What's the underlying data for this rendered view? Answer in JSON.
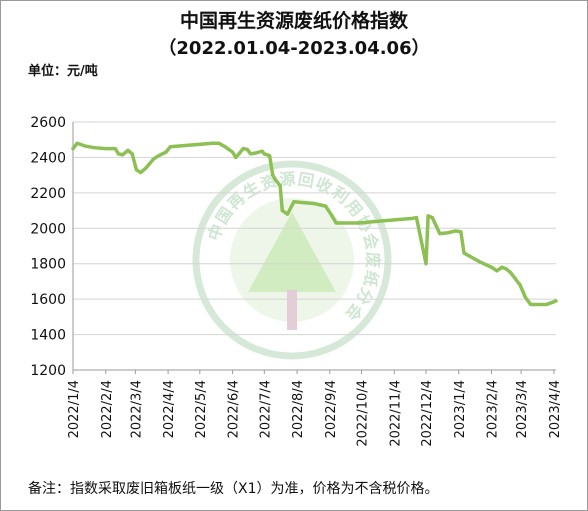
{
  "chart_data": {
    "type": "line",
    "title": "中国再生资源废纸价格指数",
    "subtitle": "（2022.01.04-2023.04.06）",
    "ylabel": "单位：元/吨",
    "ylim": [
      1200,
      2600
    ],
    "yticks": [
      1200,
      1400,
      1600,
      1800,
      2000,
      2200,
      2400,
      2600
    ],
    "grid": true,
    "xticks": [
      "2022/1/4",
      "2022/2/4",
      "2022/3/4",
      "2022/4/4",
      "2022/5/4",
      "2022/6/4",
      "2022/7/4",
      "2022/8/4",
      "2022/9/4",
      "2022/10/4",
      "2022/11/4",
      "2022/12/4",
      "2023/1/4",
      "2023/2/4",
      "2023/3/4",
      "2023/4/4"
    ],
    "watermark": "中国再生资源回收利用协会废纸分会",
    "note": "备注：指数采取废旧箱板纸一级（X1）为准，价格为不含税价格。",
    "line_color": "#8dc054",
    "series": [
      {
        "values": [
          [
            "2022/1/4",
            2450
          ],
          [
            "2022/1/8",
            2480
          ],
          [
            "2022/1/15",
            2465
          ],
          [
            "2022/1/24",
            2455
          ],
          [
            "2022/2/4",
            2450
          ],
          [
            "2022/2/13",
            2450
          ],
          [
            "2022/2/16",
            2420
          ],
          [
            "2022/2/20",
            2415
          ],
          [
            "2022/2/25",
            2440
          ],
          [
            "2022/3/1",
            2420
          ],
          [
            "2022/3/5",
            2330
          ],
          [
            "2022/3/9",
            2315
          ],
          [
            "2022/3/14",
            2340
          ],
          [
            "2022/3/21",
            2390
          ],
          [
            "2022/3/26",
            2410
          ],
          [
            "2022/4/2",
            2430
          ],
          [
            "2022/4/6",
            2460
          ],
          [
            "2022/4/16",
            2465
          ],
          [
            "2022/4/26",
            2470
          ],
          [
            "2022/5/6",
            2475
          ],
          [
            "2022/5/16",
            2480
          ],
          [
            "2022/5/22",
            2480
          ],
          [
            "2022/5/28",
            2460
          ],
          [
            "2022/6/4",
            2430
          ],
          [
            "2022/6/7",
            2400
          ],
          [
            "2022/6/10",
            2420
          ],
          [
            "2022/6/14",
            2450
          ],
          [
            "2022/6/18",
            2445
          ],
          [
            "2022/6/21",
            2420
          ],
          [
            "2022/6/26",
            2425
          ],
          [
            "2022/7/2",
            2435
          ],
          [
            "2022/7/4",
            2420
          ],
          [
            "2022/7/9",
            2410
          ],
          [
            "2022/7/12",
            2300
          ],
          [
            "2022/7/15",
            2270
          ],
          [
            "2022/7/19",
            2240
          ],
          [
            "2022/7/21",
            2100
          ],
          [
            "2022/7/26",
            2080
          ],
          [
            "2022/8/1",
            2150
          ],
          [
            "2022/8/10",
            2145
          ],
          [
            "2022/8/20",
            2140
          ],
          [
            "2022/8/31",
            2125
          ],
          [
            "2022/9/5",
            2080
          ],
          [
            "2022/9/10",
            2030
          ],
          [
            "2022/10/1",
            2030
          ],
          [
            "2022/10/20",
            2040
          ],
          [
            "2022/11/10",
            2050
          ],
          [
            "2022/11/20",
            2055
          ],
          [
            "2022/11/25",
            2060
          ],
          [
            "2022/12/4",
            1800
          ],
          [
            "2022/12/6",
            2070
          ],
          [
            "2022/12/10",
            2060
          ],
          [
            "2022/12/17",
            1970
          ],
          [
            "2022/12/25",
            1975
          ],
          [
            "2023/1/1",
            1985
          ],
          [
            "2023/1/6",
            1980
          ],
          [
            "2023/1/9",
            1860
          ],
          [
            "2023/1/18",
            1830
          ],
          [
            "2023/1/24",
            1810
          ],
          [
            "2023/2/4",
            1780
          ],
          [
            "2023/2/9",
            1760
          ],
          [
            "2023/2/14",
            1780
          ],
          [
            "2023/2/18",
            1770
          ],
          [
            "2023/2/22",
            1750
          ],
          [
            "2023/3/3",
            1680
          ],
          [
            "2023/3/8",
            1610
          ],
          [
            "2023/3/13",
            1570
          ],
          [
            "2023/3/28",
            1570
          ],
          [
            "2023/4/4",
            1585
          ],
          [
            "2023/4/6",
            1590
          ]
        ]
      }
    ]
  }
}
